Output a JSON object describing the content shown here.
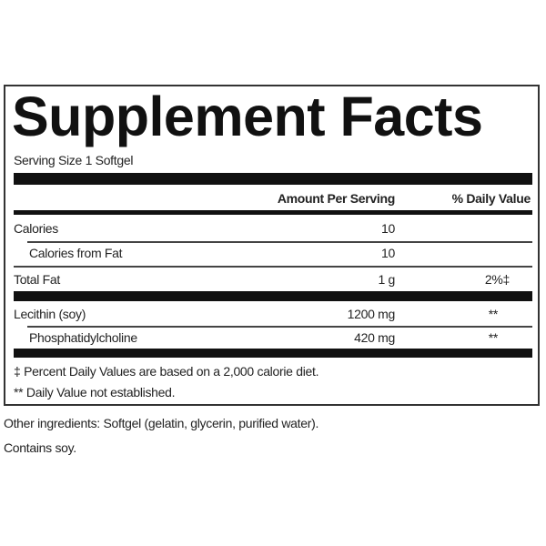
{
  "title": "Supplement Facts",
  "serving_size": "Serving Size 1 Softgel",
  "headers": {
    "amount": "Amount Per Serving",
    "dv": "% Daily Value"
  },
  "rows": [
    {
      "name": "Calories",
      "amount": "10",
      "dv": ""
    },
    {
      "name": "Calories from Fat",
      "amount": "10",
      "dv": ""
    },
    {
      "name": "Total Fat",
      "amount": "1 g",
      "dv": "2%‡"
    },
    {
      "name": "Lecithin (soy)",
      "amount": "1200 mg",
      "dv": "**"
    },
    {
      "name": "Phosphatidylcholine",
      "amount": "420 mg",
      "dv": "**"
    }
  ],
  "footnotes": [
    "‡ Percent Daily Values are based on a 2,000 calorie diet.",
    "** Daily Value not established."
  ],
  "other_ingredients": "Other ingredients: Softgel (gelatin, glycerin, purified water).",
  "allergen": "Contains soy."
}
